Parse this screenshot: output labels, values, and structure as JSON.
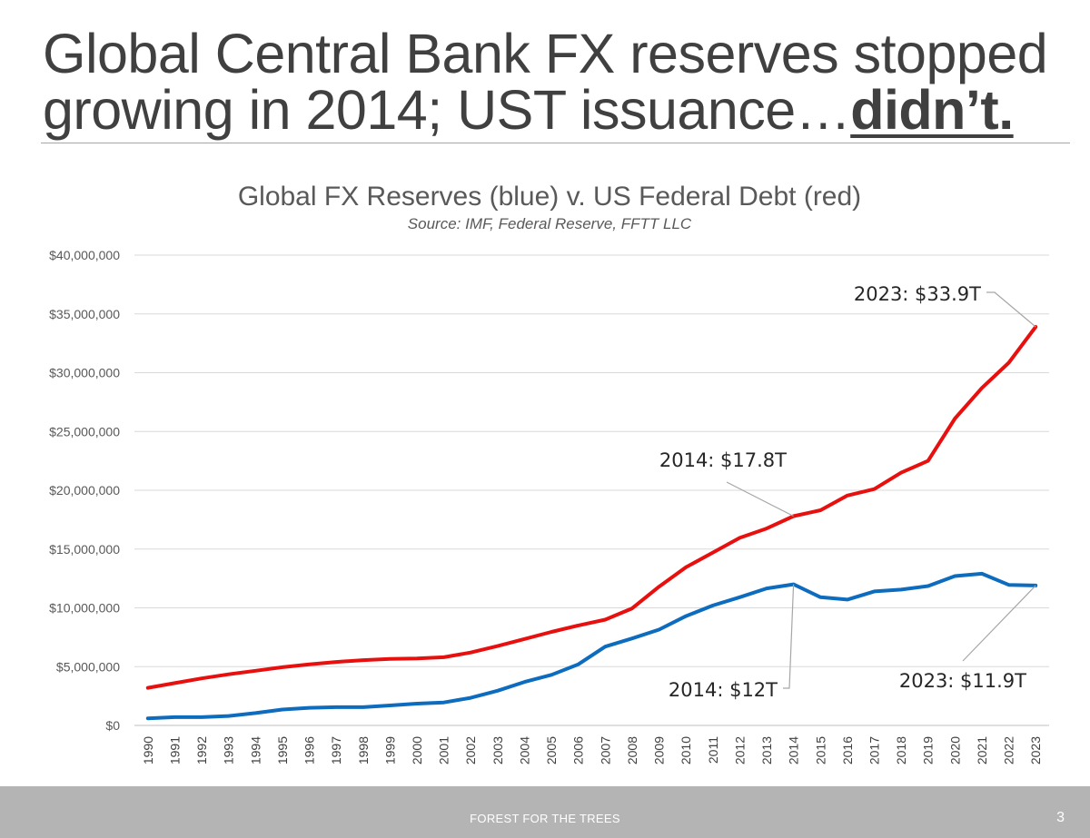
{
  "slide": {
    "title_main": "Global Central Bank FX reserves stopped growing in 2014; UST issuance…",
    "title_emph": "didn’t.",
    "footer": "FOREST FOR THE TREES",
    "page_number": "3"
  },
  "chart_data": {
    "type": "line",
    "title": "Global FX Reserves (blue) v. US Federal Debt (red)",
    "subtitle": "Source: IMF, Federal Reserve, FFTT LLC",
    "xlabel": "",
    "ylabel": "",
    "ylim": [
      0,
      40000000
    ],
    "yticks": [
      0,
      5000000,
      10000000,
      15000000,
      20000000,
      25000000,
      30000000,
      35000000,
      40000000
    ],
    "ytick_labels": [
      "$0",
      "$5,000,000",
      "$10,000,000",
      "$15,000,000",
      "$20,000,000",
      "$25,000,000",
      "$30,000,000",
      "$35,000,000",
      "$40,000,000"
    ],
    "grid": true,
    "categories": [
      "1990",
      "1991",
      "1992",
      "1993",
      "1994",
      "1995",
      "1996",
      "1997",
      "1998",
      "1999",
      "2000",
      "2001",
      "2002",
      "2003",
      "2004",
      "2005",
      "2006",
      "2007",
      "2008",
      "2009",
      "2010",
      "2011",
      "2012",
      "2013",
      "2014",
      "2015",
      "2016",
      "2017",
      "2018",
      "2019",
      "2020",
      "2021",
      "2022",
      "2023"
    ],
    "series": [
      {
        "name": "US Federal Debt",
        "color": "#e8100f",
        "values": [
          3200000,
          3600000,
          4000000,
          4350000,
          4650000,
          4950000,
          5200000,
          5400000,
          5550000,
          5650000,
          5700000,
          5800000,
          6200000,
          6750000,
          7350000,
          7950000,
          8500000,
          9000000,
          9950000,
          11800000,
          13450000,
          14700000,
          15950000,
          16750000,
          17800000,
          18300000,
          19550000,
          20100000,
          21500000,
          22500000,
          26100000,
          28700000,
          30850000,
          33900000
        ]
      },
      {
        "name": "Global FX Reserves",
        "color": "#0e6cbf",
        "values": [
          600000,
          700000,
          700000,
          800000,
          1050000,
          1350000,
          1500000,
          1550000,
          1550000,
          1700000,
          1850000,
          1950000,
          2350000,
          2950000,
          3700000,
          4300000,
          5200000,
          6700000,
          7400000,
          8150000,
          9300000,
          10200000,
          10900000,
          11650000,
          12000000,
          10900000,
          10700000,
          11400000,
          11550000,
          11850000,
          12700000,
          12900000,
          11950000,
          11900000
        ]
      }
    ],
    "annotations": [
      {
        "text": "2023: $33.9T",
        "series": 0,
        "category": "2023"
      },
      {
        "text": "2014: $17.8T",
        "series": 0,
        "category": "2014"
      },
      {
        "text": "2014: $12T",
        "series": 1,
        "category": "2014"
      },
      {
        "text": "2023: $11.9T",
        "series": 1,
        "category": "2023"
      }
    ]
  }
}
